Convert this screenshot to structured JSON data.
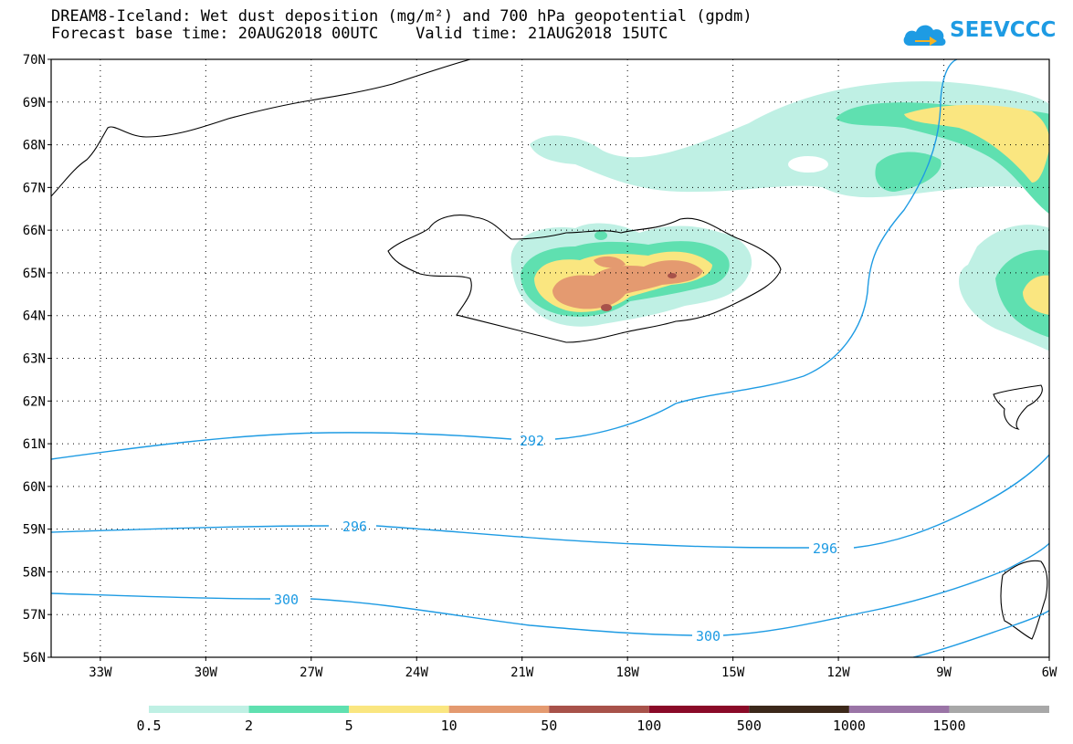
{
  "title": {
    "line1": "DREAM8-Iceland: Wet dust deposition (mg/m²) and 700 hPa geopotential (gpdm)",
    "line2": "Forecast base time: 20AUG2018 00UTC    Valid time: 21AUG2018 15UTC"
  },
  "logo": {
    "text": "SEEVCCC",
    "icon": "cloud-logo-icon",
    "color": "#1e9be3"
  },
  "chart_data": {
    "type": "map",
    "lat_labels": [
      "70N",
      "69N",
      "68N",
      "67N",
      "66N",
      "65N",
      "64N",
      "63N",
      "62N",
      "61N",
      "60N",
      "59N",
      "58N",
      "57N",
      "56N"
    ],
    "lon_labels": [
      "33W",
      "30W",
      "27W",
      "24W",
      "21W",
      "18W",
      "15W",
      "12W",
      "9W",
      "6W"
    ],
    "lat_range": [
      56,
      70
    ],
    "lon_range": [
      -34.4,
      -6
    ],
    "grid": "dotted",
    "contours": [
      {
        "value": 292,
        "label": "292"
      },
      {
        "value": 296,
        "label": "296"
      },
      {
        "value": 300,
        "label": "300"
      }
    ],
    "legend": {
      "labels": [
        "0.5",
        "2",
        "5",
        "10",
        "50",
        "100",
        "500",
        "1000",
        "1500"
      ],
      "colors": [
        "#bff0e4",
        "#5fe0b0",
        "#fae680",
        "#e49a70",
        "#a8524a",
        "#8a0a28",
        "#3c281a",
        "#9a74a6",
        "#a8a8a8"
      ]
    }
  }
}
